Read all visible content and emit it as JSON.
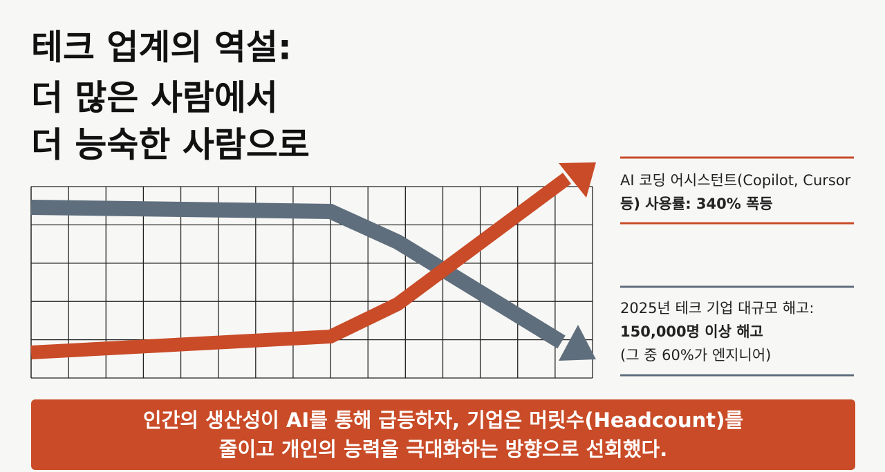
{
  "header": {
    "title_lines": [
      "테크 업계의 역설:",
      "더 많은 사람에서",
      "더 능숙한 사람으로"
    ]
  },
  "annotations": [
    {
      "lines": [
        "AI 코딩 어시스턴트(Copilot, Cursor",
        "등) 사용률: 340% 폭등"
      ]
    },
    {
      "lines": [
        "2025년 테크 기업 대규모 해고:",
        "150,000명 이상 해고",
        "(그 중 60%가 엔지니어)"
      ]
    }
  ],
  "footer": {
    "lines": [
      "인간의 생산성이 AI를 통해 급등하자, 기업은 머릿수(Headcount)를",
      "줄이고 개인의 능력을 극대화하는 방향으로 선회했다."
    ]
  }
}
